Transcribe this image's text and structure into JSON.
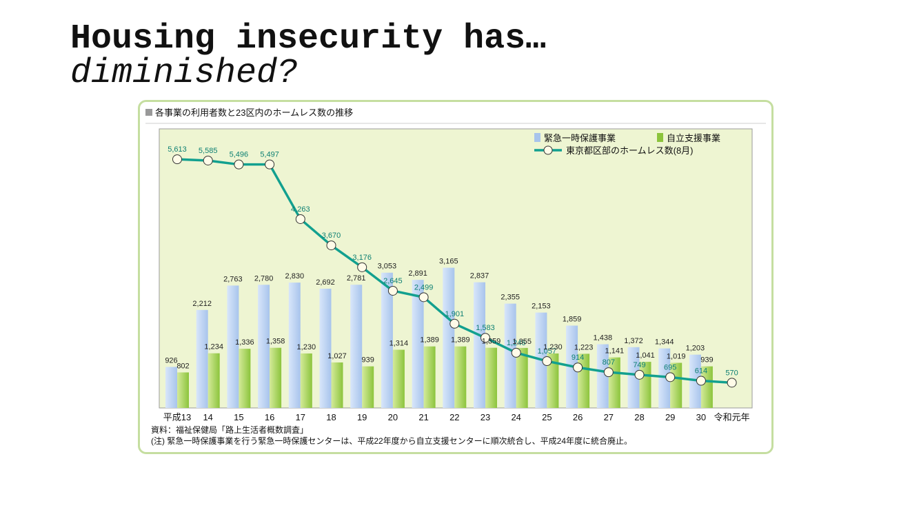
{
  "slide": {
    "title_line1": "Housing insecurity has…",
    "title_line2": "diminished?"
  },
  "chart_data": {
    "type": "bar",
    "title": "各事業の利用者数と23区内のホームレス数の推移",
    "categories": [
      "平成13",
      "14",
      "15",
      "16",
      "17",
      "18",
      "19",
      "20",
      "21",
      "22",
      "23",
      "24",
      "25",
      "26",
      "27",
      "28",
      "29",
      "30",
      "令和元年"
    ],
    "series": [
      {
        "name": "緊急一時保護事業",
        "kind": "bar",
        "color": "#a8c4ec",
        "values": [
          926,
          2212,
          2763,
          2780,
          2830,
          2692,
          2781,
          3053,
          2891,
          3165,
          2837,
          2355,
          2153,
          1859,
          1438,
          1372,
          1344,
          1203,
          null
        ]
      },
      {
        "name": "自立支援事業",
        "kind": "bar",
        "color": "#8cc43c",
        "values": [
          802,
          1234,
          1336,
          1358,
          1230,
          1027,
          939,
          1314,
          1389,
          1389,
          1359,
          1355,
          1230,
          1223,
          1141,
          1041,
          1019,
          939,
          null
        ]
      },
      {
        "name": "東京都区部のホームレス数(8月)",
        "kind": "line",
        "color": "#12a08f",
        "values": [
          5613,
          5585,
          5496,
          5497,
          4263,
          3670,
          3176,
          2645,
          2499,
          1901,
          1583,
          1246,
          1057,
          914,
          807,
          749,
          695,
          614,
          570
        ]
      }
    ],
    "ylim": [
      0,
      6300
    ],
    "grid": false,
    "legend": "top-right",
    "notes": [
      "資料：福祉保健局「路上生活者概数調査」",
      "(注) 緊急一時保護事業を行う緊急一時保護センターは、平成22年度から自立支援センターに順次統合し、平成24年度に統合廃止。"
    ]
  }
}
